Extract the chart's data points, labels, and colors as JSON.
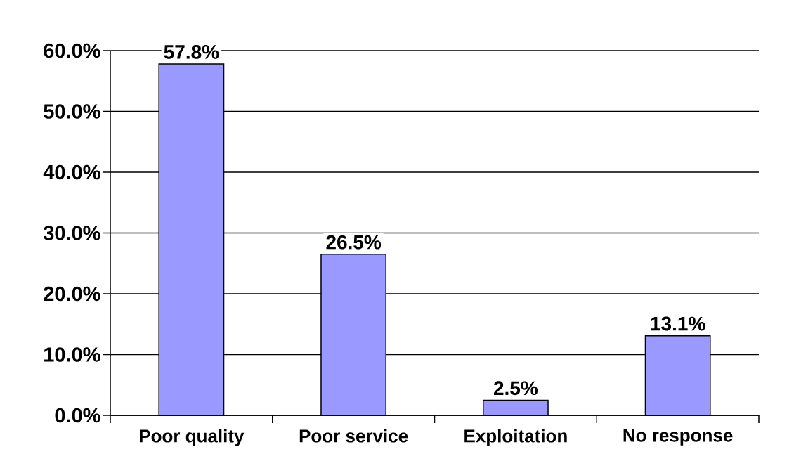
{
  "chart_data": {
    "type": "bar",
    "categories": [
      "Poor quality",
      "Poor service",
      "Exploitation",
      "No response"
    ],
    "values": [
      57.8,
      26.5,
      2.5,
      13.1
    ],
    "color": "#9999ff",
    "value_labels": [
      "57.8%",
      "26.5%",
      "2.5%",
      "13.1%"
    ],
    "ylim": [
      0,
      60
    ],
    "yticks": [
      {
        "value": 0,
        "label": "0.0%"
      },
      {
        "value": 10,
        "label": "10.0%"
      },
      {
        "value": 20,
        "label": "20.0%"
      },
      {
        "value": 30,
        "label": "30.0%"
      },
      {
        "value": 40,
        "label": "40.0%"
      },
      {
        "value": 50,
        "label": "50.0%"
      },
      {
        "value": 60,
        "label": "60.0%"
      }
    ],
    "grid": "y"
  }
}
